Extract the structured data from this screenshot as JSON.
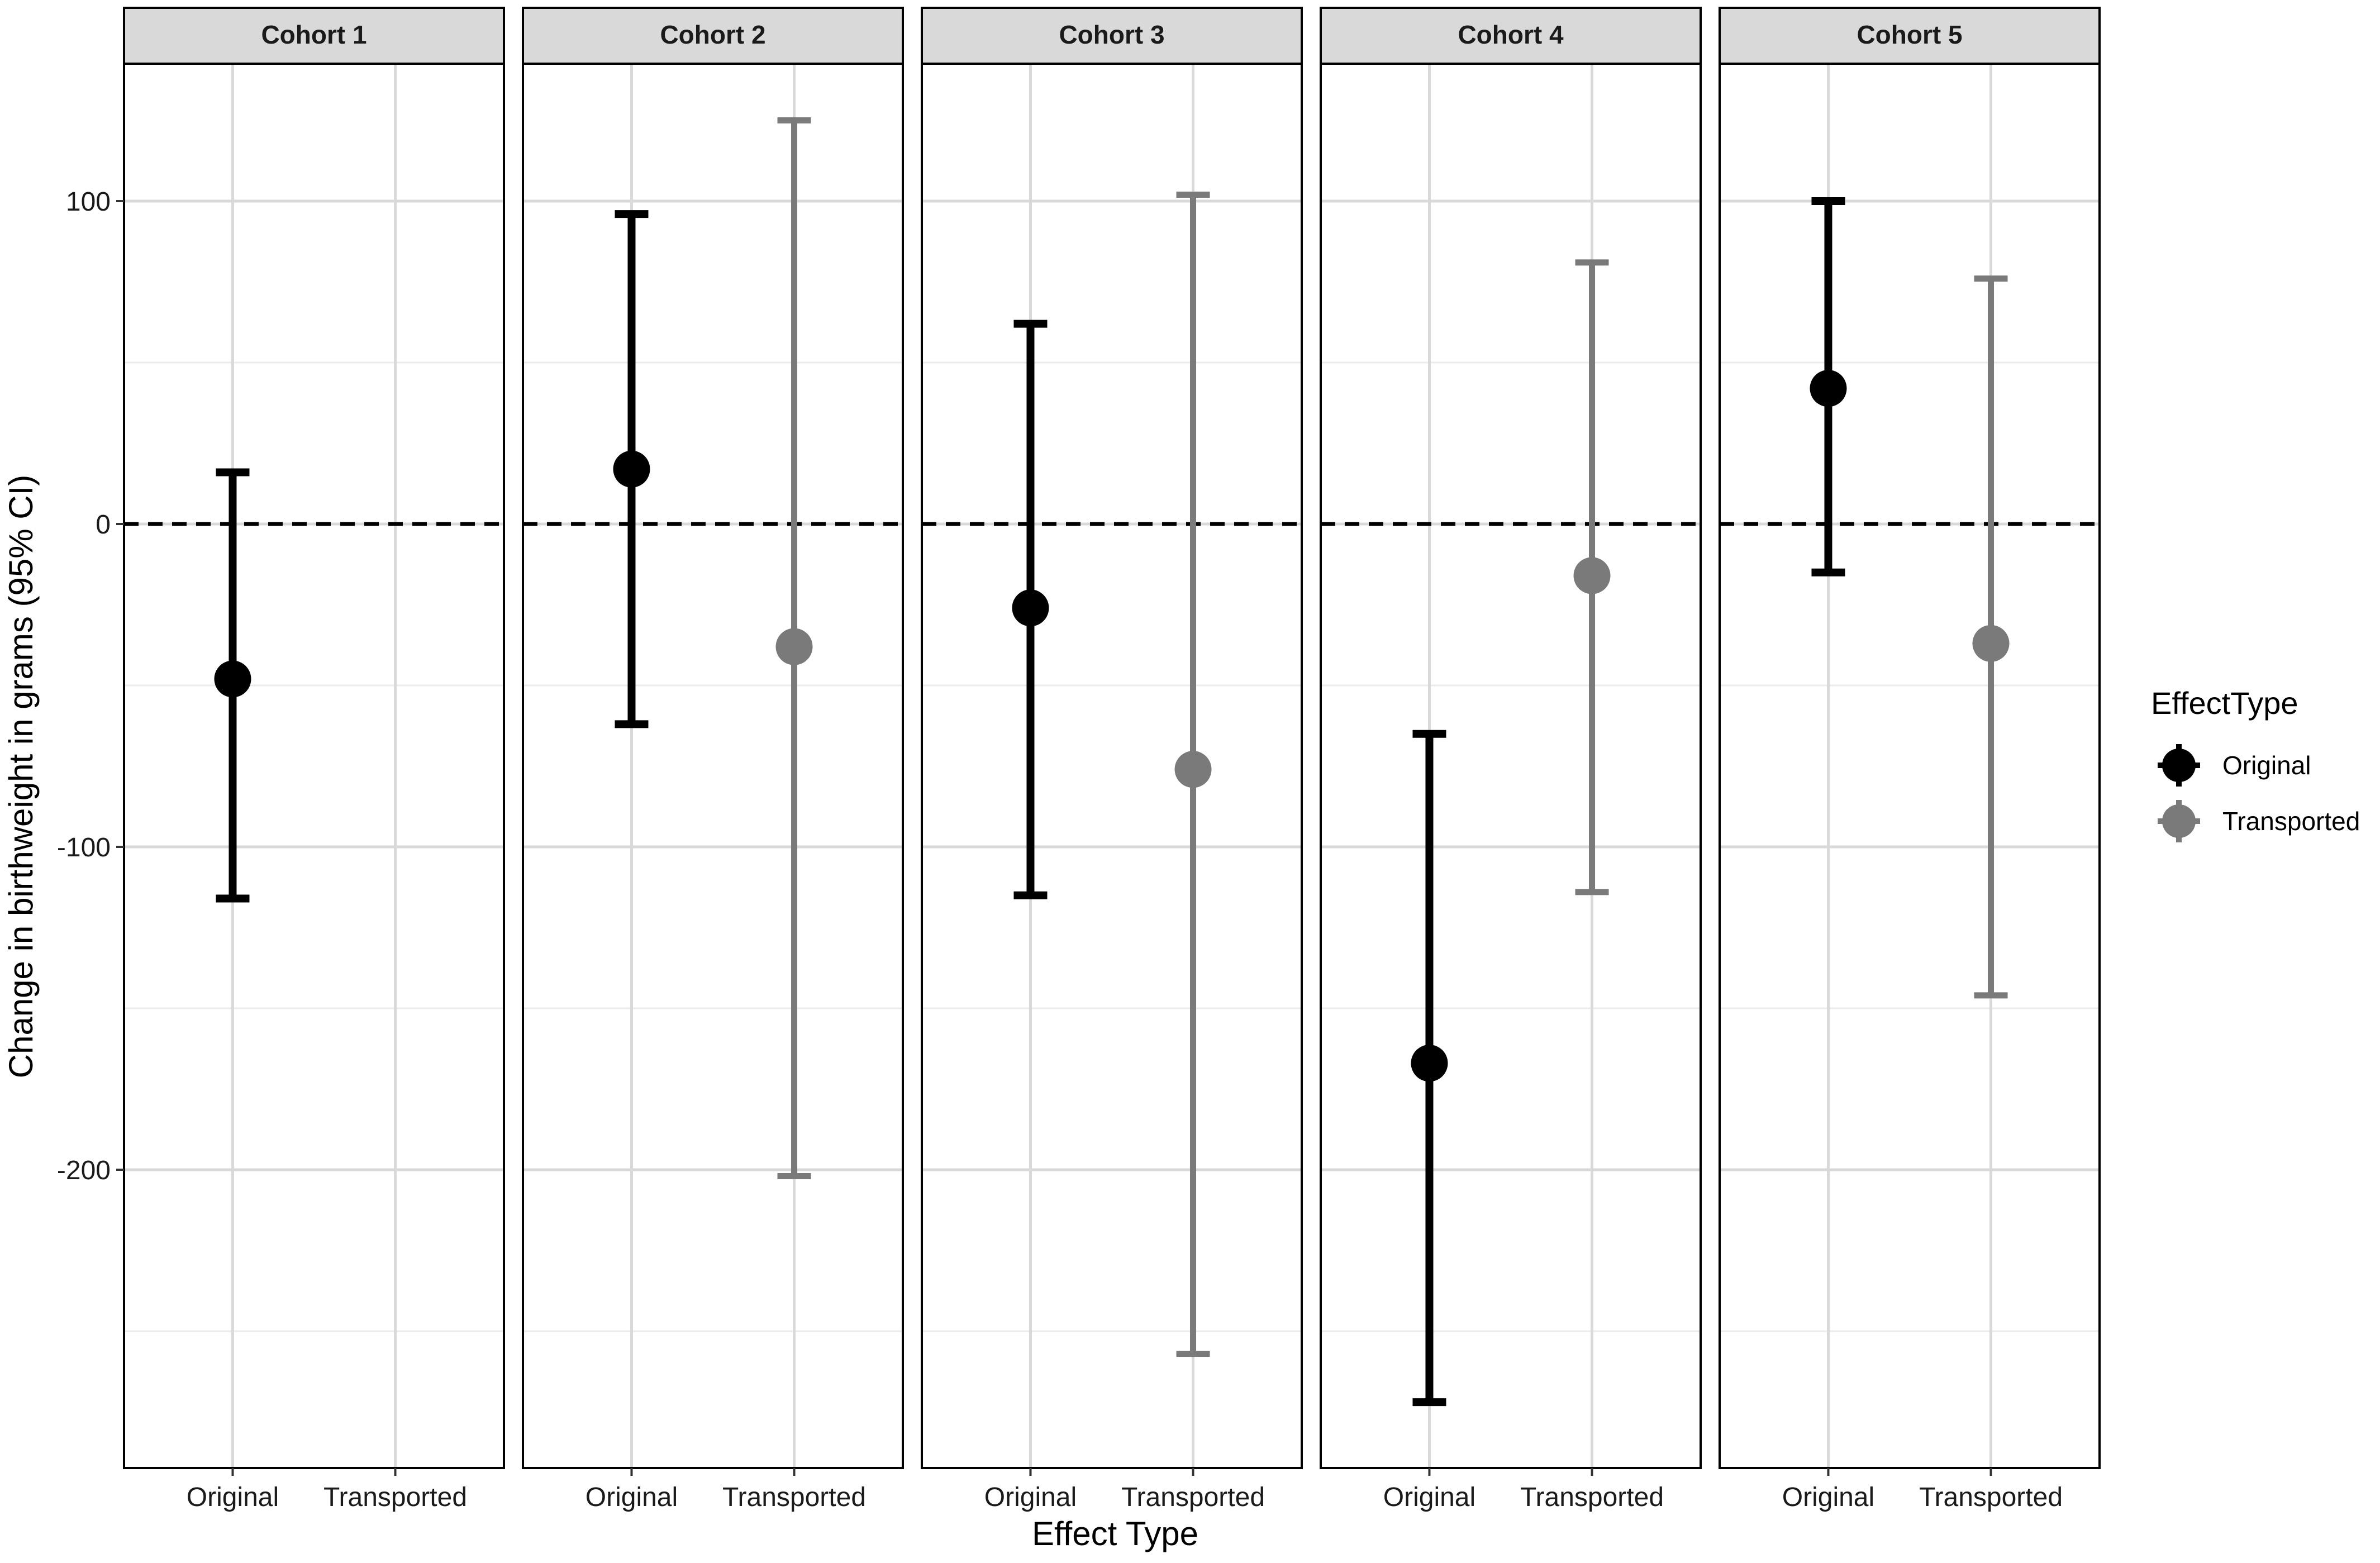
{
  "chart_data": {
    "type": "errorbar",
    "xlabel": "Effect Type",
    "ylabel": "Change in birthweight in grams (95% CI)",
    "categories": [
      "Original",
      "Transported"
    ],
    "ylim": [
      -290,
      145
    ],
    "yticks": [
      100,
      0,
      -100,
      -200
    ],
    "ytick_labels": [
      "100",
      "0",
      "-100",
      "-200"
    ],
    "y_minor_grid": [
      50,
      -50,
      -150,
      -250
    ],
    "reference_line": {
      "y": 0,
      "style": "dashed"
    },
    "grid": true,
    "legend": {
      "title": "EffectType",
      "position": "right",
      "entries": [
        {
          "label": "Original",
          "color": "#000000"
        },
        {
          "label": "Transported",
          "color": "#7a7a7a"
        }
      ]
    },
    "panels": [
      {
        "title": "Cohort 1",
        "points": [
          {
            "category": "Original",
            "series": "Original",
            "estimate": -48,
            "lower": -116,
            "upper": 16
          }
        ]
      },
      {
        "title": "Cohort 2",
        "points": [
          {
            "category": "Original",
            "series": "Original",
            "estimate": 17,
            "lower": -62,
            "upper": 96
          },
          {
            "category": "Transported",
            "series": "Transported",
            "estimate": -38,
            "lower": -202,
            "upper": 125
          }
        ]
      },
      {
        "title": "Cohort 3",
        "points": [
          {
            "category": "Original",
            "series": "Original",
            "estimate": -26,
            "lower": -115,
            "upper": 62
          },
          {
            "category": "Transported",
            "series": "Transported",
            "estimate": -76,
            "lower": -257,
            "upper": 102
          }
        ]
      },
      {
        "title": "Cohort 4",
        "points": [
          {
            "category": "Original",
            "series": "Original",
            "estimate": -167,
            "lower": -272,
            "upper": -65
          },
          {
            "category": "Transported",
            "series": "Transported",
            "estimate": -16,
            "lower": -114,
            "upper": 81
          }
        ]
      },
      {
        "title": "Cohort 5",
        "points": [
          {
            "category": "Original",
            "series": "Original",
            "estimate": 42,
            "lower": -15,
            "upper": 100
          },
          {
            "category": "Transported",
            "series": "Transported",
            "estimate": -37,
            "lower": -146,
            "upper": 76
          }
        ]
      }
    ]
  }
}
